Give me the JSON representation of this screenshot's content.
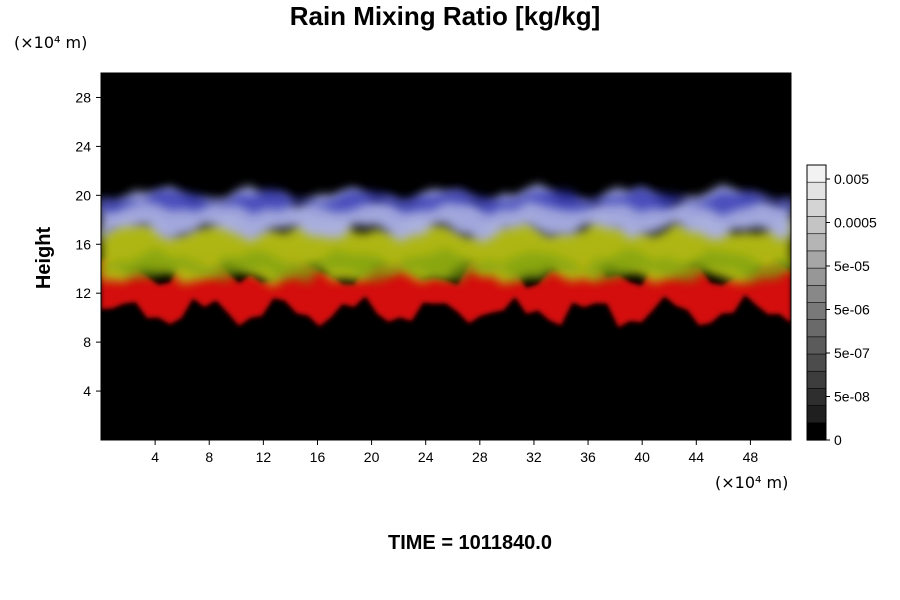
{
  "chart_data": {
    "type": "heatmap",
    "title": "Rain Mixing Ratio [kg/kg]",
    "xlabel": "",
    "ylabel": "Height",
    "x_unit": "(×10⁴ m)",
    "y_unit": "(×10⁴ m)",
    "xlim": [
      0,
      51
    ],
    "ylim": [
      0,
      30
    ],
    "x_ticks": [
      "4",
      "8",
      "12",
      "16",
      "20",
      "24",
      "28",
      "32",
      "36",
      "40",
      "44",
      "48"
    ],
    "y_ticks": [
      "4",
      "8",
      "12",
      "16",
      "20",
      "24",
      "28"
    ],
    "colorbar": {
      "labels": [
        "0.005",
        "0.0005",
        "5e-05",
        "5e-06",
        "5e-07",
        "5e-08",
        "0"
      ],
      "levels": 16,
      "colors_light_to_dark": [
        "#f2f2f2",
        "#e3e3e3",
        "#d4d4d4",
        "#c4c4c4",
        "#b5b5b5",
        "#a6a6a6",
        "#979797",
        "#888888",
        "#797979",
        "#6a6a6a",
        "#5b5b5b",
        "#4c4c4c",
        "#3d3d3d",
        "#2e2e2e",
        "#1f1f1f",
        "#000000"
      ]
    },
    "layers": [
      {
        "band": "upper",
        "color": "#aab0e8",
        "y_range": [
          17,
          20
        ]
      },
      {
        "band": "middle",
        "color": "#b8c015",
        "y_range": [
          13.5,
          17.5
        ]
      },
      {
        "band": "lower",
        "color": "#d41010",
        "y_range": [
          10.5,
          13.8
        ]
      }
    ],
    "background_color": "#000000",
    "time_label": "TIME = 1011840.0"
  }
}
